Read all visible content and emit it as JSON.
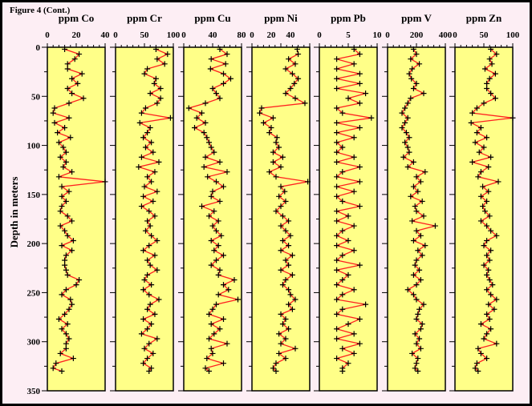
{
  "figure_label": "Figure 4 (Cont.)",
  "colors": {
    "background": "#fdeef4",
    "panel_fill": "#ffff88",
    "line": "#ff2020",
    "marker": "#000000",
    "frame": "#000000"
  },
  "chart_data": {
    "type": "line",
    "ylabel": "Depth in meters",
    "ylim": [
      0,
      350
    ],
    "y_inverted": true,
    "yticks": [
      0,
      50,
      100,
      150,
      200,
      250,
      300,
      350
    ],
    "grid": false,
    "marker": "plus",
    "depths": [
      2,
      7,
      12,
      17,
      22,
      27,
      32,
      37,
      42,
      47,
      52,
      57,
      62,
      67,
      72,
      77,
      82,
      87,
      92,
      97,
      102,
      107,
      112,
      117,
      122,
      127,
      132,
      137,
      142,
      147,
      152,
      157,
      162,
      167,
      172,
      177,
      182,
      187,
      192,
      197,
      202,
      207,
      212,
      217,
      222,
      227,
      232,
      237,
      242,
      247,
      252,
      257,
      262,
      267,
      272,
      277,
      282,
      287,
      292,
      297,
      302,
      307,
      312,
      317,
      322,
      327,
      330
    ],
    "panels": [
      {
        "title": "ppm Co",
        "xlim": [
          0,
          40
        ],
        "xticks": [
          0,
          20,
          40
        ],
        "values": [
          12,
          22,
          19,
          14,
          14,
          24,
          17,
          21,
          14,
          17,
          25,
          15,
          5,
          4,
          15,
          5,
          12,
          7,
          16,
          8,
          11,
          13,
          9,
          13,
          11,
          17,
          8,
          40,
          10,
          15,
          10,
          13,
          10,
          9,
          14,
          17,
          9,
          12,
          14,
          18,
          10,
          17,
          13,
          12,
          12,
          13,
          14,
          22,
          20,
          13,
          10,
          16,
          17,
          15,
          12,
          8,
          14,
          10,
          13,
          15,
          13,
          13,
          9,
          18,
          6,
          4,
          10
        ]
      },
      {
        "title": "ppm Cr",
        "xlim": [
          0,
          100
        ],
        "xticks": [
          0,
          50,
          100
        ],
        "values": [
          70,
          90,
          72,
          85,
          55,
          50,
          70,
          67,
          78,
          60,
          78,
          72,
          52,
          45,
          95,
          42,
          60,
          55,
          48,
          62,
          52,
          65,
          45,
          75,
          40,
          68,
          55,
          62,
          50,
          72,
          48,
          65,
          45,
          58,
          68,
          55,
          60,
          52,
          62,
          72,
          58,
          48,
          68,
          55,
          60,
          72,
          55,
          50,
          62,
          48,
          58,
          75,
          60,
          55,
          68,
          48,
          62,
          55,
          45,
          72,
          58,
          50,
          65,
          55,
          48,
          62,
          58
        ]
      },
      {
        "title": "ppm Cu",
        "xlim": [
          0,
          80
        ],
        "xticks": [
          0,
          40,
          80
        ],
        "values": [
          50,
          60,
          38,
          58,
          37,
          55,
          65,
          55,
          40,
          45,
          50,
          30,
          7,
          25,
          18,
          30,
          15,
          28,
          32,
          35,
          38,
          42,
          30,
          50,
          28,
          60,
          33,
          45,
          55,
          40,
          38,
          50,
          25,
          42,
          35,
          48,
          40,
          45,
          52,
          38,
          48,
          42,
          55,
          45,
          38,
          50,
          48,
          70,
          55,
          62,
          48,
          75,
          45,
          40,
          35,
          55,
          38,
          50,
          42,
          35,
          60,
          38,
          40,
          32,
          55,
          30,
          35
        ]
      },
      {
        "title": "ppm Ni",
        "xlim": [
          0,
          60
        ],
        "xticks": [
          0,
          20,
          40
        ],
        "values": [
          47,
          48,
          38,
          45,
          35,
          42,
          48,
          44,
          40,
          35,
          45,
          55,
          10,
          8,
          22,
          12,
          20,
          18,
          26,
          25,
          28,
          22,
          32,
          22,
          30,
          18,
          25,
          58,
          30,
          34,
          28,
          35,
          30,
          25,
          32,
          38,
          30,
          35,
          40,
          32,
          38,
          30,
          42,
          35,
          38,
          30,
          42,
          35,
          32,
          38,
          40,
          45,
          38,
          42,
          30,
          35,
          32,
          38,
          28,
          35,
          30,
          45,
          28,
          35,
          25,
          22,
          25
        ]
      },
      {
        "title": "ppm Pb",
        "xlim": [
          0,
          10
        ],
        "xticks": [
          0,
          5,
          10
        ],
        "values": [
          6,
          7,
          3,
          6,
          3,
          7,
          3,
          7,
          3,
          8,
          5,
          7,
          3,
          4,
          9,
          3,
          7,
          3,
          6,
          3,
          4,
          3,
          6,
          3,
          7,
          4,
          3,
          7,
          3,
          6,
          3,
          4,
          7,
          3,
          5,
          3,
          6,
          4,
          3,
          5,
          3,
          6,
          4,
          3,
          7,
          3,
          5,
          4,
          3,
          6,
          4,
          3,
          8,
          4,
          3,
          7,
          5,
          3,
          6,
          3,
          7,
          4,
          6,
          3,
          5,
          4,
          4
        ]
      },
      {
        "title": "ppm V",
        "xlim": [
          0,
          400
        ],
        "xticks": [
          0,
          200,
          400
        ],
        "values": [
          180,
          200,
          160,
          220,
          170,
          150,
          165,
          200,
          180,
          250,
          160,
          140,
          120,
          100,
          140,
          120,
          100,
          130,
          150,
          120,
          140,
          150,
          110,
          180,
          140,
          260,
          200,
          230,
          180,
          210,
          160,
          240,
          190,
          200,
          250,
          170,
          330,
          200,
          230,
          180,
          260,
          210,
          240,
          200,
          190,
          220,
          180,
          230,
          200,
          140,
          180,
          200,
          250,
          220,
          210,
          200,
          240,
          230,
          190,
          220,
          200,
          230,
          170,
          210,
          200,
          190,
          210
        ]
      },
      {
        "title": "ppm Zn",
        "xlim": [
          0,
          100
        ],
        "xticks": [
          0,
          50,
          100
        ],
        "values": [
          62,
          72,
          60,
          64,
          52,
          70,
          60,
          55,
          55,
          62,
          70,
          50,
          38,
          30,
          100,
          28,
          45,
          38,
          55,
          35,
          50,
          42,
          62,
          30,
          58,
          45,
          40,
          75,
          48,
          58,
          45,
          55,
          48,
          52,
          60,
          45,
          55,
          62,
          72,
          55,
          50,
          62,
          55,
          60,
          50,
          58,
          55,
          60,
          65,
          55,
          62,
          72,
          58,
          68,
          55,
          60,
          45,
          62,
          55,
          50,
          72,
          40,
          45,
          55,
          38,
          35,
          40
        ]
      }
    ]
  }
}
